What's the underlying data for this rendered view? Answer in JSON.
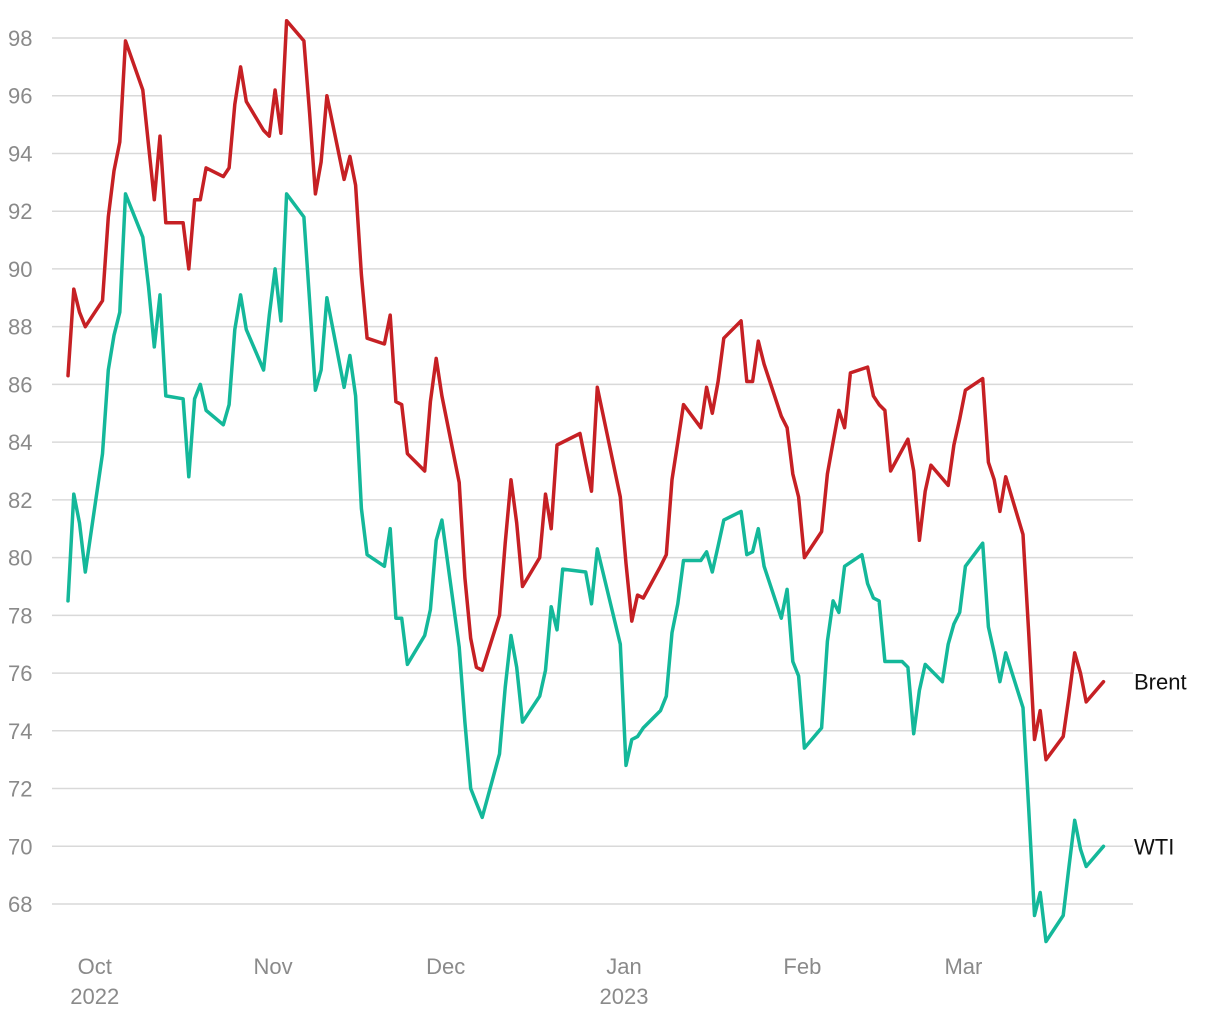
{
  "chart_data": {
    "type": "line",
    "title": "",
    "xlabel": "",
    "ylabel": "",
    "ylim": [
      67,
      98.5
    ],
    "xlim": [
      "2022-09-26",
      "2023-03-27"
    ],
    "grid": "horizontal",
    "legend": "end-of-line labels",
    "y_ticks": [
      68,
      70,
      72,
      74,
      76,
      78,
      80,
      82,
      84,
      86,
      88,
      90,
      92,
      94,
      96,
      98
    ],
    "x_ticks": [
      {
        "date": "2022-10-01",
        "label": "Oct",
        "sublabel": "2022"
      },
      {
        "date": "2022-11-01",
        "label": "Nov",
        "sublabel": ""
      },
      {
        "date": "2022-12-01",
        "label": "Dec",
        "sublabel": ""
      },
      {
        "date": "2023-01-01",
        "label": "Jan",
        "sublabel": "2023"
      },
      {
        "date": "2023-02-01",
        "label": "Feb",
        "sublabel": ""
      },
      {
        "date": "2023-03-01",
        "label": "Mar",
        "sublabel": ""
      }
    ],
    "series": [
      {
        "name": "Brent",
        "color": "#c62024",
        "points": [
          [
            "2022-09-26",
            86.3
          ],
          [
            "2022-09-27",
            89.3
          ],
          [
            "2022-09-28",
            88.5
          ],
          [
            "2022-09-29",
            88.0
          ],
          [
            "2022-10-02",
            88.9
          ],
          [
            "2022-10-03",
            91.8
          ],
          [
            "2022-10-04",
            93.4
          ],
          [
            "2022-10-05",
            94.4
          ],
          [
            "2022-10-06",
            97.9
          ],
          [
            "2022-10-09",
            96.2
          ],
          [
            "2022-10-10",
            94.3
          ],
          [
            "2022-10-11",
            92.4
          ],
          [
            "2022-10-12",
            94.6
          ],
          [
            "2022-10-13",
            91.6
          ],
          [
            "2022-10-16",
            91.6
          ],
          [
            "2022-10-17",
            90.0
          ],
          [
            "2022-10-18",
            92.4
          ],
          [
            "2022-10-19",
            92.4
          ],
          [
            "2022-10-20",
            93.5
          ],
          [
            "2022-10-23",
            93.2
          ],
          [
            "2022-10-24",
            93.5
          ],
          [
            "2022-10-25",
            95.7
          ],
          [
            "2022-10-26",
            97.0
          ],
          [
            "2022-10-27",
            95.8
          ],
          [
            "2022-10-30",
            94.8
          ],
          [
            "2022-10-31",
            94.6
          ],
          [
            "2022-11-01",
            96.2
          ],
          [
            "2022-11-02",
            94.7
          ],
          [
            "2022-11-03",
            98.6
          ],
          [
            "2022-11-06",
            97.9
          ],
          [
            "2022-11-07",
            95.4
          ],
          [
            "2022-11-08",
            92.6
          ],
          [
            "2022-11-09",
            93.7
          ],
          [
            "2022-11-10",
            96.0
          ],
          [
            "2022-11-13",
            93.1
          ],
          [
            "2022-11-14",
            93.9
          ],
          [
            "2022-11-15",
            92.9
          ],
          [
            "2022-11-16",
            89.8
          ],
          [
            "2022-11-17",
            87.6
          ],
          [
            "2022-11-20",
            87.4
          ],
          [
            "2022-11-21",
            88.4
          ],
          [
            "2022-11-22",
            85.4
          ],
          [
            "2022-11-23",
            85.3
          ],
          [
            "2022-11-24",
            83.6
          ],
          [
            "2022-11-27",
            83.0
          ],
          [
            "2022-11-28",
            85.4
          ],
          [
            "2022-11-29",
            86.9
          ],
          [
            "2022-11-30",
            85.6
          ],
          [
            "2022-12-03",
            82.6
          ],
          [
            "2022-12-04",
            79.3
          ],
          [
            "2022-12-05",
            77.2
          ],
          [
            "2022-12-06",
            76.2
          ],
          [
            "2022-12-07",
            76.1
          ],
          [
            "2022-12-10",
            78.0
          ],
          [
            "2022-12-11",
            80.5
          ],
          [
            "2022-12-12",
            82.7
          ],
          [
            "2022-12-13",
            81.2
          ],
          [
            "2022-12-14",
            79.0
          ],
          [
            "2022-12-17",
            80.0
          ],
          [
            "2022-12-18",
            82.2
          ],
          [
            "2022-12-19",
            81.0
          ],
          [
            "2022-12-20",
            83.9
          ],
          [
            "2022-12-24",
            84.3
          ],
          [
            "2022-12-25",
            83.3
          ],
          [
            "2022-12-26",
            82.3
          ],
          [
            "2022-12-27",
            85.9
          ],
          [
            "2022-12-31",
            82.1
          ],
          [
            "2023-01-01",
            79.8
          ],
          [
            "2023-01-02",
            77.8
          ],
          [
            "2023-01-03",
            78.7
          ],
          [
            "2023-01-04",
            78.6
          ],
          [
            "2023-01-07",
            79.7
          ],
          [
            "2023-01-08",
            80.1
          ],
          [
            "2023-01-09",
            82.7
          ],
          [
            "2023-01-10",
            84.0
          ],
          [
            "2023-01-11",
            85.3
          ],
          [
            "2023-01-14",
            84.5
          ],
          [
            "2023-01-15",
            85.9
          ],
          [
            "2023-01-16",
            85.0
          ],
          [
            "2023-01-17",
            86.1
          ],
          [
            "2023-01-18",
            87.6
          ],
          [
            "2023-01-21",
            88.2
          ],
          [
            "2023-01-22",
            86.1
          ],
          [
            "2023-01-23",
            86.1
          ],
          [
            "2023-01-24",
            87.5
          ],
          [
            "2023-01-25",
            86.7
          ],
          [
            "2023-01-28",
            84.9
          ],
          [
            "2023-01-29",
            84.5
          ],
          [
            "2023-01-30",
            82.9
          ],
          [
            "2023-01-31",
            82.1
          ],
          [
            "2023-02-01",
            80.0
          ],
          [
            "2023-02-04",
            80.9
          ],
          [
            "2023-02-05",
            82.9
          ],
          [
            "2023-02-06",
            84.0
          ],
          [
            "2023-02-07",
            85.1
          ],
          [
            "2023-02-08",
            84.5
          ],
          [
            "2023-02-09",
            86.4
          ],
          [
            "2023-02-12",
            86.6
          ],
          [
            "2023-02-13",
            85.6
          ],
          [
            "2023-02-14",
            85.3
          ],
          [
            "2023-02-15",
            85.1
          ],
          [
            "2023-02-16",
            83.0
          ],
          [
            "2023-02-19",
            84.1
          ],
          [
            "2023-02-20",
            83.0
          ],
          [
            "2023-02-21",
            80.6
          ],
          [
            "2023-02-22",
            82.3
          ],
          [
            "2023-02-23",
            83.2
          ],
          [
            "2023-02-26",
            82.5
          ],
          [
            "2023-02-27",
            83.9
          ],
          [
            "2023-02-28",
            84.8
          ],
          [
            "2023-03-01",
            85.8
          ],
          [
            "2023-03-04",
            86.2
          ],
          [
            "2023-03-05",
            83.3
          ],
          [
            "2023-03-06",
            82.7
          ],
          [
            "2023-03-07",
            81.6
          ],
          [
            "2023-03-08",
            82.8
          ],
          [
            "2023-03-11",
            80.8
          ],
          [
            "2023-03-12",
            77.4
          ],
          [
            "2023-03-13",
            73.7
          ],
          [
            "2023-03-14",
            74.7
          ],
          [
            "2023-03-15",
            73.0
          ],
          [
            "2023-03-18",
            73.8
          ],
          [
            "2023-03-19",
            75.2
          ],
          [
            "2023-03-20",
            76.7
          ],
          [
            "2023-03-21",
            76.0
          ],
          [
            "2023-03-22",
            75.0
          ],
          [
            "2023-03-25",
            75.7
          ]
        ]
      },
      {
        "name": "WTI",
        "color": "#14b89a",
        "points": [
          [
            "2022-09-26",
            78.5
          ],
          [
            "2022-09-27",
            82.2
          ],
          [
            "2022-09-28",
            81.2
          ],
          [
            "2022-09-29",
            79.5
          ],
          [
            "2022-10-02",
            83.6
          ],
          [
            "2022-10-03",
            86.5
          ],
          [
            "2022-10-04",
            87.7
          ],
          [
            "2022-10-05",
            88.5
          ],
          [
            "2022-10-06",
            92.6
          ],
          [
            "2022-10-09",
            91.1
          ],
          [
            "2022-10-10",
            89.4
          ],
          [
            "2022-10-11",
            87.3
          ],
          [
            "2022-10-12",
            89.1
          ],
          [
            "2022-10-13",
            85.6
          ],
          [
            "2022-10-16",
            85.5
          ],
          [
            "2022-10-17",
            82.8
          ],
          [
            "2022-10-18",
            85.5
          ],
          [
            "2022-10-19",
            86.0
          ],
          [
            "2022-10-20",
            85.1
          ],
          [
            "2022-10-23",
            84.6
          ],
          [
            "2022-10-24",
            85.3
          ],
          [
            "2022-10-25",
            87.9
          ],
          [
            "2022-10-26",
            89.1
          ],
          [
            "2022-10-27",
            87.9
          ],
          [
            "2022-10-30",
            86.5
          ],
          [
            "2022-10-31",
            88.4
          ],
          [
            "2022-11-01",
            90.0
          ],
          [
            "2022-11-02",
            88.2
          ],
          [
            "2022-11-03",
            92.6
          ],
          [
            "2022-11-06",
            91.8
          ],
          [
            "2022-11-07",
            88.9
          ],
          [
            "2022-11-08",
            85.8
          ],
          [
            "2022-11-09",
            86.5
          ],
          [
            "2022-11-10",
            89.0
          ],
          [
            "2022-11-13",
            85.9
          ],
          [
            "2022-11-14",
            87.0
          ],
          [
            "2022-11-15",
            85.6
          ],
          [
            "2022-11-16",
            81.7
          ],
          [
            "2022-11-17",
            80.1
          ],
          [
            "2022-11-20",
            79.7
          ],
          [
            "2022-11-21",
            81.0
          ],
          [
            "2022-11-22",
            77.9
          ],
          [
            "2022-11-23",
            77.9
          ],
          [
            "2022-11-24",
            76.3
          ],
          [
            "2022-11-27",
            77.3
          ],
          [
            "2022-11-28",
            78.2
          ],
          [
            "2022-11-29",
            80.6
          ],
          [
            "2022-11-30",
            81.3
          ],
          [
            "2022-12-03",
            76.9
          ],
          [
            "2022-12-04",
            74.3
          ],
          [
            "2022-12-05",
            72.0
          ],
          [
            "2022-12-06",
            71.5
          ],
          [
            "2022-12-07",
            71.0
          ],
          [
            "2022-12-10",
            73.2
          ],
          [
            "2022-12-11",
            75.5
          ],
          [
            "2022-12-12",
            77.3
          ],
          [
            "2022-12-13",
            76.2
          ],
          [
            "2022-12-14",
            74.3
          ],
          [
            "2022-12-17",
            75.2
          ],
          [
            "2022-12-18",
            76.1
          ],
          [
            "2022-12-19",
            78.3
          ],
          [
            "2022-12-20",
            77.5
          ],
          [
            "2022-12-21",
            79.6
          ],
          [
            "2022-12-25",
            79.5
          ],
          [
            "2022-12-26",
            78.4
          ],
          [
            "2022-12-27",
            80.3
          ],
          [
            "2022-12-31",
            77.0
          ],
          [
            "2023-01-01",
            72.8
          ],
          [
            "2023-01-02",
            73.7
          ],
          [
            "2023-01-03",
            73.8
          ],
          [
            "2023-01-04",
            74.1
          ],
          [
            "2023-01-07",
            74.7
          ],
          [
            "2023-01-08",
            75.2
          ],
          [
            "2023-01-09",
            77.4
          ],
          [
            "2023-01-10",
            78.4
          ],
          [
            "2023-01-11",
            79.9
          ],
          [
            "2023-01-14",
            79.9
          ],
          [
            "2023-01-15",
            80.2
          ],
          [
            "2023-01-16",
            79.5
          ],
          [
            "2023-01-17",
            80.4
          ],
          [
            "2023-01-18",
            81.3
          ],
          [
            "2023-01-21",
            81.6
          ],
          [
            "2023-01-22",
            80.1
          ],
          [
            "2023-01-23",
            80.2
          ],
          [
            "2023-01-24",
            81.0
          ],
          [
            "2023-01-25",
            79.7
          ],
          [
            "2023-01-28",
            77.9
          ],
          [
            "2023-01-29",
            78.9
          ],
          [
            "2023-01-30",
            76.4
          ],
          [
            "2023-01-31",
            75.9
          ],
          [
            "2023-02-01",
            73.4
          ],
          [
            "2023-02-04",
            74.1
          ],
          [
            "2023-02-05",
            77.1
          ],
          [
            "2023-02-06",
            78.5
          ],
          [
            "2023-02-07",
            78.1
          ],
          [
            "2023-02-08",
            79.7
          ],
          [
            "2023-02-11",
            80.1
          ],
          [
            "2023-02-12",
            79.1
          ],
          [
            "2023-02-13",
            78.6
          ],
          [
            "2023-02-14",
            78.5
          ],
          [
            "2023-02-15",
            76.4
          ],
          [
            "2023-02-18",
            76.4
          ],
          [
            "2023-02-19",
            76.2
          ],
          [
            "2023-02-20",
            73.9
          ],
          [
            "2023-02-21",
            75.4
          ],
          [
            "2023-02-22",
            76.3
          ],
          [
            "2023-02-25",
            75.7
          ],
          [
            "2023-02-26",
            77.0
          ],
          [
            "2023-02-27",
            77.7
          ],
          [
            "2023-02-28",
            78.1
          ],
          [
            "2023-03-01",
            79.7
          ],
          [
            "2023-03-04",
            80.5
          ],
          [
            "2023-03-05",
            77.6
          ],
          [
            "2023-03-06",
            76.7
          ],
          [
            "2023-03-07",
            75.7
          ],
          [
            "2023-03-08",
            76.7
          ],
          [
            "2023-03-11",
            74.8
          ],
          [
            "2023-03-12",
            71.3
          ],
          [
            "2023-03-13",
            67.6
          ],
          [
            "2023-03-14",
            68.4
          ],
          [
            "2023-03-15",
            66.7
          ],
          [
            "2023-03-18",
            67.6
          ],
          [
            "2023-03-19",
            69.3
          ],
          [
            "2023-03-20",
            70.9
          ],
          [
            "2023-03-21",
            69.9
          ],
          [
            "2023-03-22",
            69.3
          ],
          [
            "2023-03-25",
            70.0
          ]
        ]
      }
    ]
  }
}
